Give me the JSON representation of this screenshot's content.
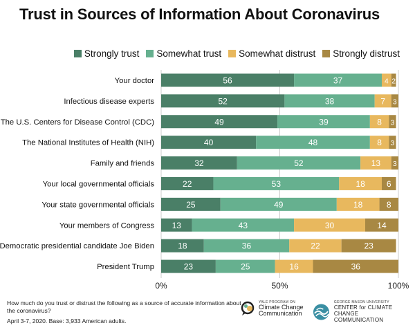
{
  "title": "Trust in Sources of Information About Coronavirus",
  "colors": {
    "strongly_trust": "#4a7f67",
    "somewhat_trust": "#66b08f",
    "somewhat_distrust": "#e8b85e",
    "strongly_distrust": "#a88843",
    "grid": "#cccccc",
    "bar_text": "#ffffff"
  },
  "chart_data": {
    "type": "bar",
    "orientation": "horizontal",
    "stacked": true,
    "categories": [
      "Your doctor",
      "Infectious disease experts",
      "The U.S. Centers for Disease Control (CDC)",
      "The National Institutes of Health (NIH)",
      "Family and friends",
      "Your local governmental officials",
      "Your state governmental officials",
      "Your members of Congress",
      "Democratic presidential candidate Joe Biden",
      "President Trump"
    ],
    "series": [
      {
        "name": "Strongly trust",
        "values": [
          56,
          52,
          49,
          40,
          32,
          22,
          25,
          13,
          18,
          23
        ]
      },
      {
        "name": "Somewhat trust",
        "values": [
          37,
          38,
          39,
          48,
          52,
          53,
          49,
          43,
          36,
          25
        ]
      },
      {
        "name": "Somewhat distrust",
        "values": [
          4,
          7,
          8,
          8,
          13,
          18,
          18,
          30,
          22,
          16
        ]
      },
      {
        "name": "Strongly distrust",
        "values": [
          2,
          3,
          3,
          3,
          3,
          6,
          8,
          14,
          23,
          36
        ]
      }
    ],
    "xlim": [
      0,
      100
    ],
    "xticks": [
      "0%",
      "50%",
      "100%"
    ],
    "grid": true,
    "legend_position": "top-right"
  },
  "footnote": {
    "question": "How much do you trust or distrust the following as a source of accurate information about the coronavirus?",
    "base": "April 3-7, 2020. Base: 3,933 American adults."
  },
  "logos": {
    "yale": {
      "small": "YALE PROGRAM ON",
      "line1": "Climate Change",
      "line2": "Communication"
    },
    "gmu": {
      "small": "GEORGE MASON UNIVERSITY",
      "line1": "CENTER for CLIMATE CHANGE",
      "line2": "COMMUNICATION"
    }
  }
}
